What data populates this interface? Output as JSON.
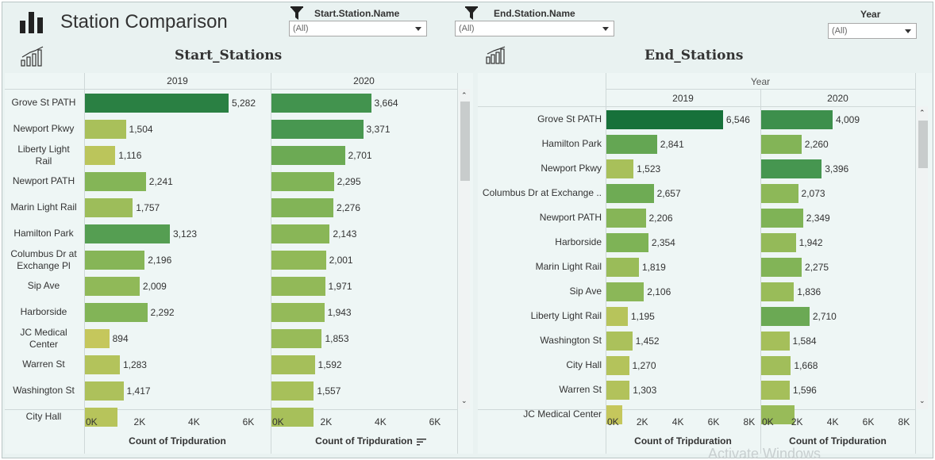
{
  "header": {
    "title": "Station Comparison",
    "filters": [
      {
        "label": "Start.Station.Name",
        "value": "(All)"
      },
      {
        "label": "End.Station.Name",
        "value": "(All)"
      },
      {
        "label": "Year",
        "value": "(All)"
      }
    ]
  },
  "chart_data": [
    {
      "type": "bar",
      "orientation": "horizontal",
      "title": "Start_Stations",
      "xlabel": "Count of Tripduration",
      "column_header": "",
      "columns": [
        "2019",
        "2020"
      ],
      "xlim": [
        0,
        6800
      ],
      "xticks": [
        "0K",
        "2K",
        "4K",
        "6K"
      ],
      "categories": [
        "Grove St PATH",
        "Newport Pkwy",
        "Liberty Light Rail",
        "Newport PATH",
        "Marin Light Rail",
        "Hamilton Park",
        "Columbus Dr at Exchange Pl",
        "Sip Ave",
        "Harborside",
        "JC Medical Center",
        "Warren St",
        "Washington St",
        "City Hall"
      ],
      "category_display": [
        "Grove St PATH",
        "Newport Pkwy",
        "Liberty Light\nRail",
        "Newport PATH",
        "Marin Light Rail",
        "Hamilton Park",
        "Columbus Dr at\nExchange Pl",
        "Sip Ave",
        "Harborside",
        "JC Medical\nCenter",
        "Warren St",
        "Washington St",
        "City Hall"
      ],
      "series": [
        {
          "name": "2019",
          "values": [
            5282,
            1504,
            1116,
            2241,
            1757,
            3123,
            2196,
            2009,
            2292,
            894,
            1283,
            1417,
            1200
          ]
        },
        {
          "name": "2020",
          "values": [
            3664,
            3371,
            2701,
            2295,
            2276,
            2143,
            2001,
            1971,
            1943,
            1853,
            1592,
            1557,
            1550
          ]
        }
      ],
      "value_labels": [
        [
          "5,282",
          "1,504",
          "1,116",
          "2,241",
          "1,757",
          "3,123",
          "2,196",
          "2,009",
          "2,292",
          "894",
          "1,283",
          "1,417",
          ""
        ],
        [
          "3,664",
          "3,371",
          "2,701",
          "2,295",
          "2,276",
          "2,143",
          "2,001",
          "1,971",
          "1,943",
          "1,853",
          "1,592",
          "1,557",
          ""
        ]
      ]
    },
    {
      "type": "bar",
      "orientation": "horizontal",
      "title": "End_Stations",
      "xlabel": "Count of Tripduration",
      "column_header": "Year",
      "columns": [
        "2019",
        "2020"
      ],
      "xlim": [
        0,
        8600
      ],
      "xticks": [
        "0K",
        "2K",
        "4K",
        "6K",
        "8K"
      ],
      "categories": [
        "Grove St PATH",
        "Hamilton Park",
        "Newport Pkwy",
        "Columbus Dr at Exchange ..",
        "Newport PATH",
        "Harborside",
        "Marin Light Rail",
        "Sip Ave",
        "Liberty Light Rail",
        "Washington St",
        "City Hall",
        "Warren St",
        "JC Medical Center"
      ],
      "category_display": [
        "Grove St PATH",
        "Hamilton Park",
        "Newport Pkwy",
        "Columbus Dr at Exchange ..",
        "Newport PATH",
        "Harborside",
        "Marin Light Rail",
        "Sip Ave",
        "Liberty Light Rail",
        "Washington St",
        "City Hall",
        "Warren St",
        "JC Medical Center"
      ],
      "series": [
        {
          "name": "2019",
          "values": [
            6546,
            2841,
            1523,
            2657,
            2206,
            2354,
            1819,
            2106,
            1195,
            1452,
            1270,
            1303,
            900
          ]
        },
        {
          "name": "2020",
          "values": [
            4009,
            2260,
            3396,
            2073,
            2349,
            1942,
            2275,
            1836,
            2710,
            1584,
            1668,
            1596,
            1850
          ]
        }
      ],
      "value_labels": [
        [
          "6,546",
          "2,841",
          "1,523",
          "2,657",
          "2,206",
          "2,354",
          "1,819",
          "2,106",
          "1,195",
          "1,452",
          "1,270",
          "1,303",
          ""
        ],
        [
          "4,009",
          "2,260",
          "3,396",
          "2,073",
          "2,349",
          "1,942",
          "2,275",
          "1,836",
          "2,710",
          "1,584",
          "1,668",
          "1,596",
          ""
        ]
      ]
    }
  ],
  "watermark": "Activate Windows"
}
